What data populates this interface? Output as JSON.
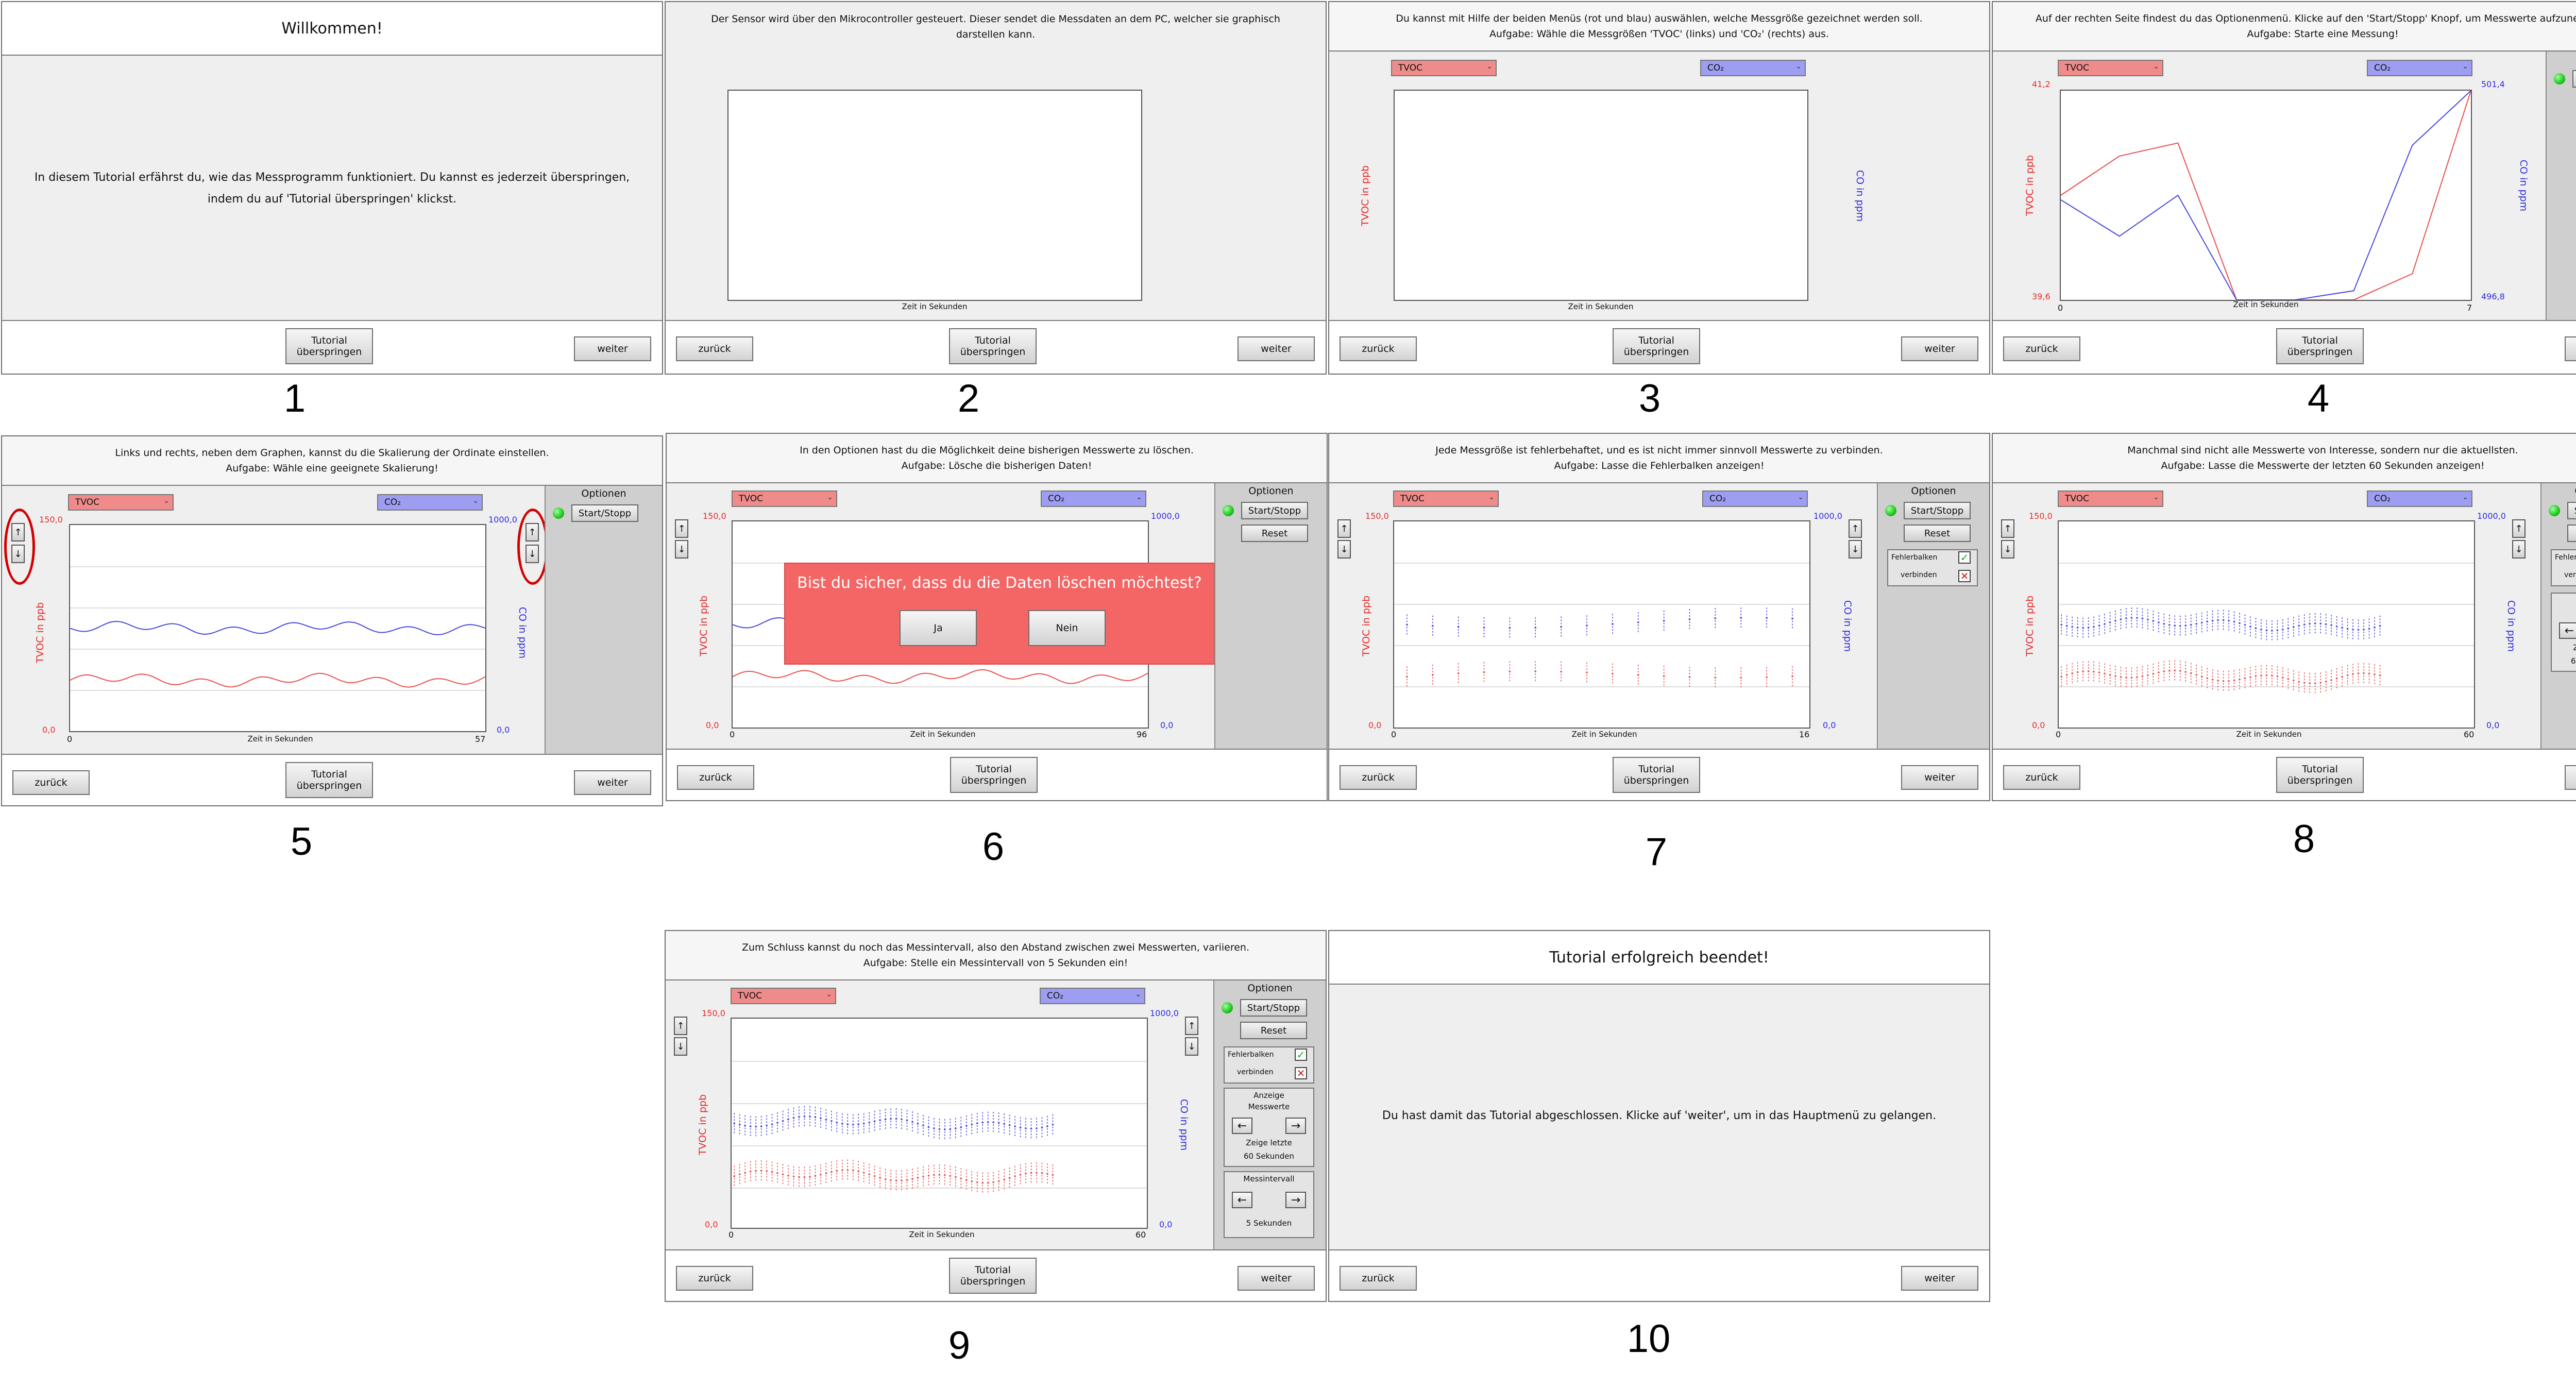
{
  "buttons": {
    "back": "zurück",
    "skip": "Tutorial überspringen",
    "next": "weiter"
  },
  "axes": {
    "left_label": "TVOC  in ppb",
    "right_label": "CO   in ppm",
    "x_label": "Zeit in Sekunden",
    "left_min": "0,0",
    "left_max": "150,0",
    "right_min": "0,0",
    "right_max": "1000,0"
  },
  "dropdowns": {
    "left": "TVOC",
    "right": "CO₂"
  },
  "options": {
    "title": "Optionen",
    "start_stop": "Start/Stopp",
    "reset": "Reset",
    "error_bars": "Fehlerbalken",
    "connect": "verbinden",
    "display_title": "Anzeige",
    "display_sub": "Messwerte",
    "display_value_1": "Zeige letzte",
    "display_value_2": "60 Sekunden",
    "interval_title": "Messintervall",
    "interval_value": "5 Sekunden"
  },
  "panels": [
    {
      "number": "1",
      "title": "Willkommen!",
      "body": "In diesem Tutorial erfährst du, wie das Messprogramm funktioniert. Du kannst es jederzeit überspringen, indem du auf 'Tutorial überspringen' klickst."
    },
    {
      "number": "2",
      "line1": "Der Sensor wird über den Mikrocontroller gesteuert. Dieser sendet die Messdaten an dem PC, welcher sie graphisch",
      "line2": "darstellen kann.",
      "x_label": "Zeit in Sekunden"
    },
    {
      "number": "3",
      "line1": "Du kannst mit Hilfe der beiden Menüs (rot und blau) auswählen, welche Messgröße gezeichnet werden soll.",
      "line2": "Aufgabe: Wähle die Messgrößen 'TVOC' (links) und 'CO₂' (rechts) aus."
    },
    {
      "number": "4",
      "line1": "Auf der rechten Seite findest du das Optionenmenü. Klicke auf den 'Start/Stopp' Knopf, um Messwerte aufzunehmen.",
      "line2": "Aufgabe: Starte eine Messung!",
      "left_min": "39,6",
      "left_max": "41,2",
      "right_min": "496,8",
      "right_max": "501,4",
      "x_min": "0",
      "x_max": "7"
    },
    {
      "number": "5",
      "line1": "Links und rechts, neben dem Graphen, kannst du die Skalierung der Ordinate einstellen.",
      "line2": "Aufgabe: Wähle eine geeignete Skalierung!",
      "x_min": "0",
      "x_max": "57"
    },
    {
      "number": "6",
      "line1": "In den Optionen hast du die Möglichkeit deine bisherigen Messwerte zu löschen.",
      "line2": "Aufgabe: Lösche die bisherigen Daten!",
      "x_min": "0",
      "x_max": "96",
      "dialog_text": "Bist du sicher, dass du die Daten löschen möchtest?",
      "yes": "Ja",
      "no": "Nein"
    },
    {
      "number": "7",
      "line1": "Jede Messgröße ist fehlerbehaftet, und es ist nicht immer sinnvoll Messwerte zu verbinden.",
      "line2": "Aufgabe: Lasse die Fehlerbalken anzeigen!",
      "x_min": "0",
      "x_max": "16"
    },
    {
      "number": "8",
      "line1": "Manchmal sind nicht alle Messwerte von Interesse, sondern nur die aktuellsten.",
      "line2": "Aufgabe: Lasse die Messwerte der letzten 60 Sekunden anzeigen!",
      "x_min": "0",
      "x_max": "60"
    },
    {
      "number": "9",
      "line1": "Zum Schluss kannst du noch das Messintervall, also den Abstand zwischen zwei Messwerten, variieren.",
      "line2": "Aufgabe: Stelle ein Messintervall von 5 Sekunden ein!",
      "x_min": "0",
      "x_max": "60"
    },
    {
      "number": "10",
      "title": "Tutorial erfolgreich beendet!",
      "body": "Du hast damit das Tutorial abgeschlossen. Klicke auf 'weiter', um in das Hauptmenü zu gelangen."
    }
  ],
  "chart_data": [
    {
      "type": "line",
      "panel": "4",
      "x": [
        0,
        1,
        2,
        3,
        4,
        5,
        6,
        7
      ],
      "xlim": [
        0,
        7
      ],
      "series": [
        {
          "axis": "left",
          "ylim": [
            39.6,
            41.2
          ],
          "values": [
            40.4,
            40.7,
            40.8,
            39.6,
            39.6,
            39.6,
            39.8,
            41.2
          ]
        },
        {
          "axis": "right",
          "ylim": [
            496.8,
            501.4
          ],
          "values": [
            499.0,
            498.2,
            499.1,
            496.8,
            496.8,
            497.0,
            500.2,
            501.4
          ]
        }
      ]
    },
    {
      "type": "line",
      "panel": "5",
      "xlim": [
        0,
        57
      ],
      "series": [
        {
          "axis": "left",
          "ylim": [
            0,
            150
          ],
          "level": 37
        },
        {
          "axis": "right",
          "ylim": [
            0,
            1000
          ],
          "level": 500
        }
      ]
    },
    {
      "type": "line",
      "panel": "6",
      "xlim": [
        0,
        96
      ],
      "series": [
        {
          "axis": "left",
          "ylim": [
            0,
            150
          ],
          "level": 37
        },
        {
          "axis": "right",
          "ylim": [
            0,
            1000
          ],
          "level": 500
        }
      ]
    },
    {
      "type": "scatter",
      "panel": "7",
      "xlim": [
        0,
        16
      ],
      "error_bars": true,
      "series": [
        {
          "axis": "left",
          "ylim": [
            0,
            150
          ],
          "level": 37
        },
        {
          "axis": "right",
          "ylim": [
            0,
            1000
          ],
          "level": 500
        }
      ]
    },
    {
      "type": "scatter",
      "panel": "8",
      "xlim": [
        0,
        60
      ],
      "error_bars": true,
      "series": [
        {
          "axis": "left",
          "ylim": [
            0,
            150
          ],
          "level": 37
        },
        {
          "axis": "right",
          "ylim": [
            0,
            1000
          ],
          "level": 500
        }
      ]
    },
    {
      "type": "scatter",
      "panel": "9",
      "xlim": [
        0,
        60
      ],
      "error_bars": true,
      "series": [
        {
          "axis": "left",
          "ylim": [
            0,
            150
          ],
          "level": 37
        },
        {
          "axis": "right",
          "ylim": [
            0,
            1000
          ],
          "level": 500
        }
      ]
    }
  ]
}
